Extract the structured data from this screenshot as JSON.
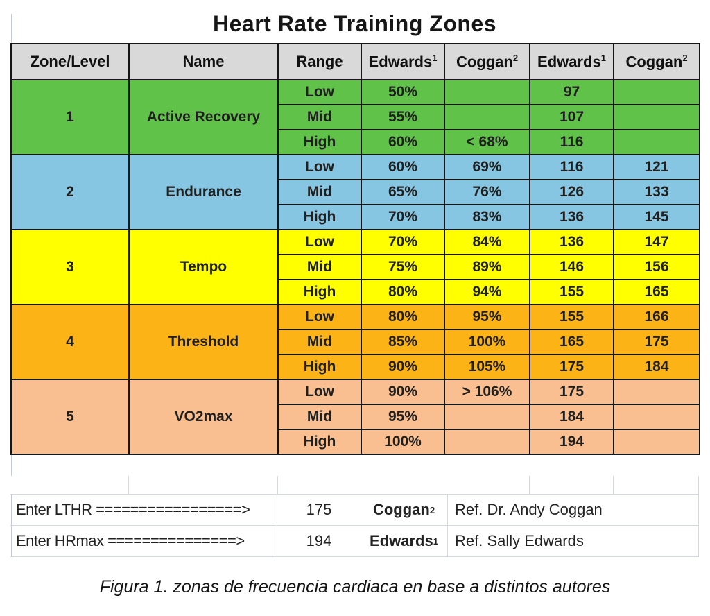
{
  "title": "Heart Rate Training Zones",
  "caption": "Figura 1. zonas de frecuencia cardiaca en base a distintos autores",
  "colors": {
    "header_bg": "#d9d9d9",
    "zone1": "#61c24a",
    "zone2": "#87c6e2",
    "zone3": "#ffff00",
    "zone4": "#fcb315",
    "zone5": "#f9bf90",
    "grid_border": "#161616",
    "light_gridline": "#d4d9de"
  },
  "table": {
    "headers": [
      {
        "label": "Zone/Level",
        "sup": ""
      },
      {
        "label": "Name",
        "sup": ""
      },
      {
        "label": "Range",
        "sup": ""
      },
      {
        "label": "Edwards",
        "sup": "1"
      },
      {
        "label": "Coggan",
        "sup": "2"
      },
      {
        "label": "Edwards",
        "sup": "1"
      },
      {
        "label": "Coggan",
        "sup": "2"
      }
    ],
    "zones": [
      {
        "zone": "1",
        "name": "Active Recovery",
        "color_key": "zone1",
        "rows": [
          {
            "range": "Low",
            "edwards_pct": "50%",
            "coggan_pct": "",
            "edwards_bpm": "97",
            "coggan_bpm": ""
          },
          {
            "range": "Mid",
            "edwards_pct": "55%",
            "coggan_pct": "",
            "edwards_bpm": "107",
            "coggan_bpm": ""
          },
          {
            "range": "High",
            "edwards_pct": "60%",
            "coggan_pct": "< 68%",
            "edwards_bpm": "116",
            "coggan_bpm": ""
          }
        ]
      },
      {
        "zone": "2",
        "name": "Endurance",
        "color_key": "zone2",
        "rows": [
          {
            "range": "Low",
            "edwards_pct": "60%",
            "coggan_pct": "69%",
            "edwards_bpm": "116",
            "coggan_bpm": "121"
          },
          {
            "range": "Mid",
            "edwards_pct": "65%",
            "coggan_pct": "76%",
            "edwards_bpm": "126",
            "coggan_bpm": "133"
          },
          {
            "range": "High",
            "edwards_pct": "70%",
            "coggan_pct": "83%",
            "edwards_bpm": "136",
            "coggan_bpm": "145"
          }
        ]
      },
      {
        "zone": "3",
        "name": "Tempo",
        "color_key": "zone3",
        "rows": [
          {
            "range": "Low",
            "edwards_pct": "70%",
            "coggan_pct": "84%",
            "edwards_bpm": "136",
            "coggan_bpm": "147"
          },
          {
            "range": "Mid",
            "edwards_pct": "75%",
            "coggan_pct": "89%",
            "edwards_bpm": "146",
            "coggan_bpm": "156"
          },
          {
            "range": "High",
            "edwards_pct": "80%",
            "coggan_pct": "94%",
            "edwards_bpm": "155",
            "coggan_bpm": "165"
          }
        ]
      },
      {
        "zone": "4",
        "name": "Threshold",
        "color_key": "zone4",
        "rows": [
          {
            "range": "Low",
            "edwards_pct": "80%",
            "coggan_pct": "95%",
            "edwards_bpm": "155",
            "coggan_bpm": "166"
          },
          {
            "range": "Mid",
            "edwards_pct": "85%",
            "coggan_pct": "100%",
            "edwards_bpm": "165",
            "coggan_bpm": "175"
          },
          {
            "range": "High",
            "edwards_pct": "90%",
            "coggan_pct": "105%",
            "edwards_bpm": "175",
            "coggan_bpm": "184"
          }
        ]
      },
      {
        "zone": "5",
        "name": "VO2max",
        "color_key": "zone5",
        "rows": [
          {
            "range": "Low",
            "edwards_pct": "90%",
            "coggan_pct": "> 106%",
            "edwards_bpm": "175",
            "coggan_bpm": ""
          },
          {
            "range": "Mid",
            "edwards_pct": "95%",
            "coggan_pct": "",
            "edwards_bpm": "184",
            "coggan_bpm": ""
          },
          {
            "range": "High",
            "edwards_pct": "100%",
            "coggan_pct": "",
            "edwards_bpm": "194",
            "coggan_bpm": ""
          }
        ]
      }
    ],
    "selection": {
      "zone_index": 3,
      "row_index": 1,
      "columns": [
        "edwards_bpm",
        "coggan_bpm"
      ]
    }
  },
  "footer": {
    "lthr": {
      "label": "Enter LTHR =================>",
      "value": "175",
      "author": "Coggan",
      "author_sup": "2",
      "ref": "Ref. Dr. Andy Coggan"
    },
    "hrmax": {
      "label": "Enter HRmax ===============>",
      "value": "194",
      "author": "Edwards",
      "author_sup": "1",
      "ref": "Ref. Sally Edwards"
    }
  }
}
